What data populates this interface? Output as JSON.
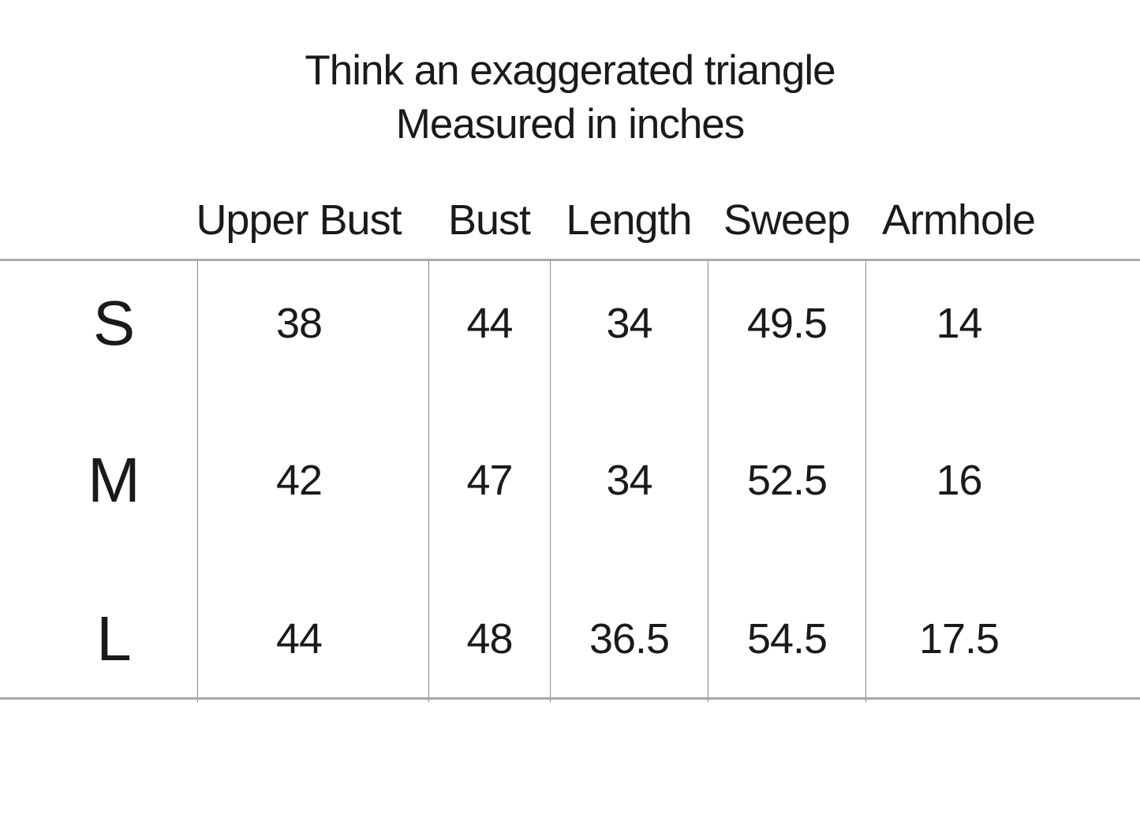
{
  "title": {
    "line1": "Think an exaggerated triangle",
    "line2": "Measured in inches"
  },
  "table": {
    "columns": [
      "Upper Bust",
      "Bust",
      "Length",
      "Sweep",
      "Armhole"
    ],
    "rows": [
      {
        "size": "S",
        "values": [
          "38",
          "44",
          "34",
          "49.5",
          "14"
        ]
      },
      {
        "size": "M",
        "values": [
          "42",
          "47",
          "34",
          "52.5",
          "16"
        ]
      },
      {
        "size": "L",
        "values": [
          "44",
          "48",
          "36.5",
          "54.5",
          "17.5"
        ]
      }
    ]
  },
  "colors": {
    "background": "#ffffff",
    "text": "#1a1a1a",
    "horizontal_rule": "#a9a9a9",
    "vertical_divider": "#878787"
  }
}
